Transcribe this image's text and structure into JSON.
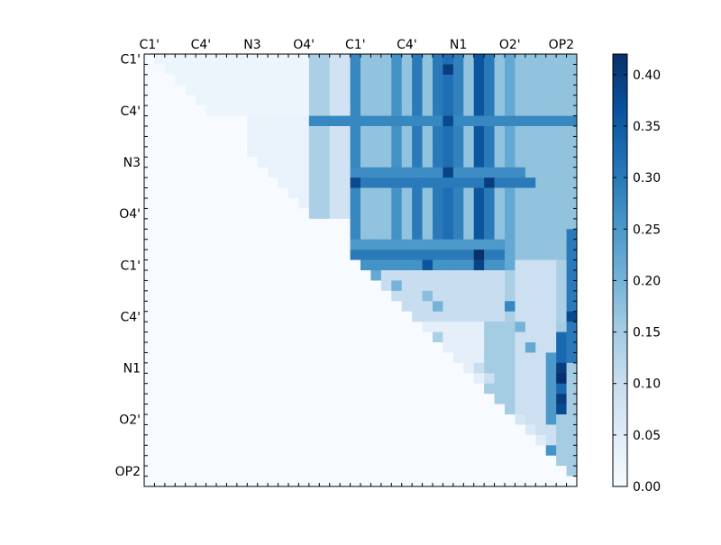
{
  "chart_data": {
    "type": "heatmap",
    "title": "",
    "xlabel": "",
    "ylabel": "",
    "n": 42,
    "x_ticklabels": [
      "C1'",
      "C4'",
      "N3",
      "O4'",
      "C1'",
      "C4'",
      "N1",
      "O2'",
      "OP2"
    ],
    "y_ticklabels": [
      "C1'",
      "C4'",
      "N3",
      "O4'",
      "C1'",
      "C4'",
      "N1",
      "O2'",
      "OP2"
    ],
    "colorbar": {
      "min": 0.0,
      "max": 0.42,
      "ticks": [
        "0.00",
        "0.05",
        "0.10",
        "0.15",
        "0.20",
        "0.25",
        "0.30",
        "0.35",
        "0.40"
      ],
      "colormap": "Blues",
      "stops": [
        "#f7fbff",
        "#deebf7",
        "#c6dbef",
        "#9ecae1",
        "#6baed6",
        "#4292c6",
        "#2171b5",
        "#08519c",
        "#08306b"
      ]
    },
    "blocks": [
      {
        "r": [
          0,
          41
        ],
        "c": [
          0,
          41
        ],
        "v": 0.0
      },
      {
        "r": [
          0,
          5
        ],
        "c": [
          1,
          15
        ],
        "v": 0.02
      },
      {
        "r": [
          6,
          15
        ],
        "c": [
          10,
          15
        ],
        "v": 0.03
      },
      {
        "r": [
          0,
          15
        ],
        "c": [
          16,
          17
        ],
        "v": 0.14
      },
      {
        "r": [
          0,
          15
        ],
        "c": [
          18,
          20
        ],
        "v": 0.08
      },
      {
        "r": [
          0,
          20
        ],
        "c": [
          20,
          41
        ],
        "v": 0.17
      },
      {
        "r": [
          20,
          25
        ],
        "c": [
          20,
          35
        ],
        "v": 0.1
      },
      {
        "r": [
          20,
          25
        ],
        "c": [
          35,
          41
        ],
        "v": 0.14
      },
      {
        "r": [
          26,
          41
        ],
        "c": [
          20,
          33
        ],
        "v": 0.04
      },
      {
        "r": [
          26,
          41
        ],
        "c": [
          33,
          41
        ],
        "v": 0.15
      },
      {
        "r": [
          20,
          41
        ],
        "c": [
          36,
          39
        ],
        "v": 0.09
      },
      {
        "r": [
          28,
          30
        ],
        "c": [
          21,
          24
        ],
        "v": 0.08
      }
    ],
    "cols": [
      {
        "c": 20,
        "r": [
          0,
          20
        ],
        "v": 0.28
      },
      {
        "c": 24,
        "r": [
          0,
          20
        ],
        "v": 0.26
      },
      {
        "c": 26,
        "r": [
          0,
          20
        ],
        "v": 0.3
      },
      {
        "c": 28,
        "r": [
          0,
          20
        ],
        "v": 0.3
      },
      {
        "c": 29,
        "r": [
          0,
          20
        ],
        "v": 0.32
      },
      {
        "c": 30,
        "r": [
          0,
          20
        ],
        "v": 0.29
      },
      {
        "c": 32,
        "r": [
          0,
          20
        ],
        "v": 0.36
      },
      {
        "c": 33,
        "r": [
          0,
          20
        ],
        "v": 0.3
      },
      {
        "c": 35,
        "r": [
          0,
          20
        ],
        "v": 0.22
      },
      {
        "c": 41,
        "r": [
          17,
          29
        ],
        "v": 0.3
      },
      {
        "c": 40,
        "r": [
          27,
          34
        ],
        "v": 0.33
      },
      {
        "c": 39,
        "r": [
          29,
          35
        ],
        "v": 0.25
      }
    ],
    "rows": [
      {
        "r": 6,
        "c": [
          16,
          41
        ],
        "v": 0.28
      },
      {
        "r": 11,
        "c": [
          20,
          36
        ],
        "v": 0.27
      },
      {
        "r": 12,
        "c": [
          20,
          37
        ],
        "v": 0.3
      },
      {
        "r": 18,
        "c": [
          20,
          34
        ],
        "v": 0.25
      },
      {
        "r": 19,
        "c": [
          20,
          34
        ],
        "v": 0.3
      },
      {
        "r": 20,
        "c": [
          20,
          34
        ],
        "v": 0.26
      }
    ],
    "points": [
      {
        "r": 1,
        "c": 29,
        "v": 0.4
      },
      {
        "r": 6,
        "c": 29,
        "v": 0.38
      },
      {
        "r": 11,
        "c": 29,
        "v": 0.39
      },
      {
        "r": 12,
        "c": 33,
        "v": 0.4
      },
      {
        "r": 19,
        "c": 32,
        "v": 0.42
      },
      {
        "r": 20,
        "c": 32,
        "v": 0.39
      },
      {
        "r": 20,
        "c": 27,
        "v": 0.36
      },
      {
        "r": 12,
        "c": 20,
        "v": 0.38
      },
      {
        "r": 25,
        "c": 41,
        "v": 0.38
      },
      {
        "r": 30,
        "c": 40,
        "v": 0.4
      },
      {
        "r": 31,
        "c": 40,
        "v": 0.42
      },
      {
        "r": 33,
        "c": 40,
        "v": 0.4
      },
      {
        "r": 34,
        "c": 40,
        "v": 0.38
      },
      {
        "r": 24,
        "c": 35,
        "v": 0.28
      },
      {
        "r": 21,
        "c": 21,
        "v": 0.22
      },
      {
        "r": 21,
        "c": 22,
        "v": 0.22
      },
      {
        "r": 22,
        "c": 24,
        "v": 0.2
      },
      {
        "r": 23,
        "c": 27,
        "v": 0.18
      },
      {
        "r": 24,
        "c": 28,
        "v": 0.2
      },
      {
        "r": 26,
        "c": 26,
        "v": 0.16
      },
      {
        "r": 27,
        "c": 28,
        "v": 0.14
      },
      {
        "r": 29,
        "c": 29,
        "v": 0.12
      },
      {
        "r": 30,
        "c": 32,
        "v": 0.1
      },
      {
        "r": 31,
        "c": 33,
        "v": 0.09
      },
      {
        "r": 35,
        "c": 36,
        "v": 0.07
      },
      {
        "r": 36,
        "c": 37,
        "v": 0.06
      },
      {
        "r": 37,
        "c": 38,
        "v": 0.05
      },
      {
        "r": 26,
        "c": 36,
        "v": 0.2
      },
      {
        "r": 28,
        "c": 37,
        "v": 0.22
      },
      {
        "r": 38,
        "c": 38,
        "v": 0.18
      },
      {
        "r": 38,
        "c": 39,
        "v": 0.26
      }
    ]
  }
}
